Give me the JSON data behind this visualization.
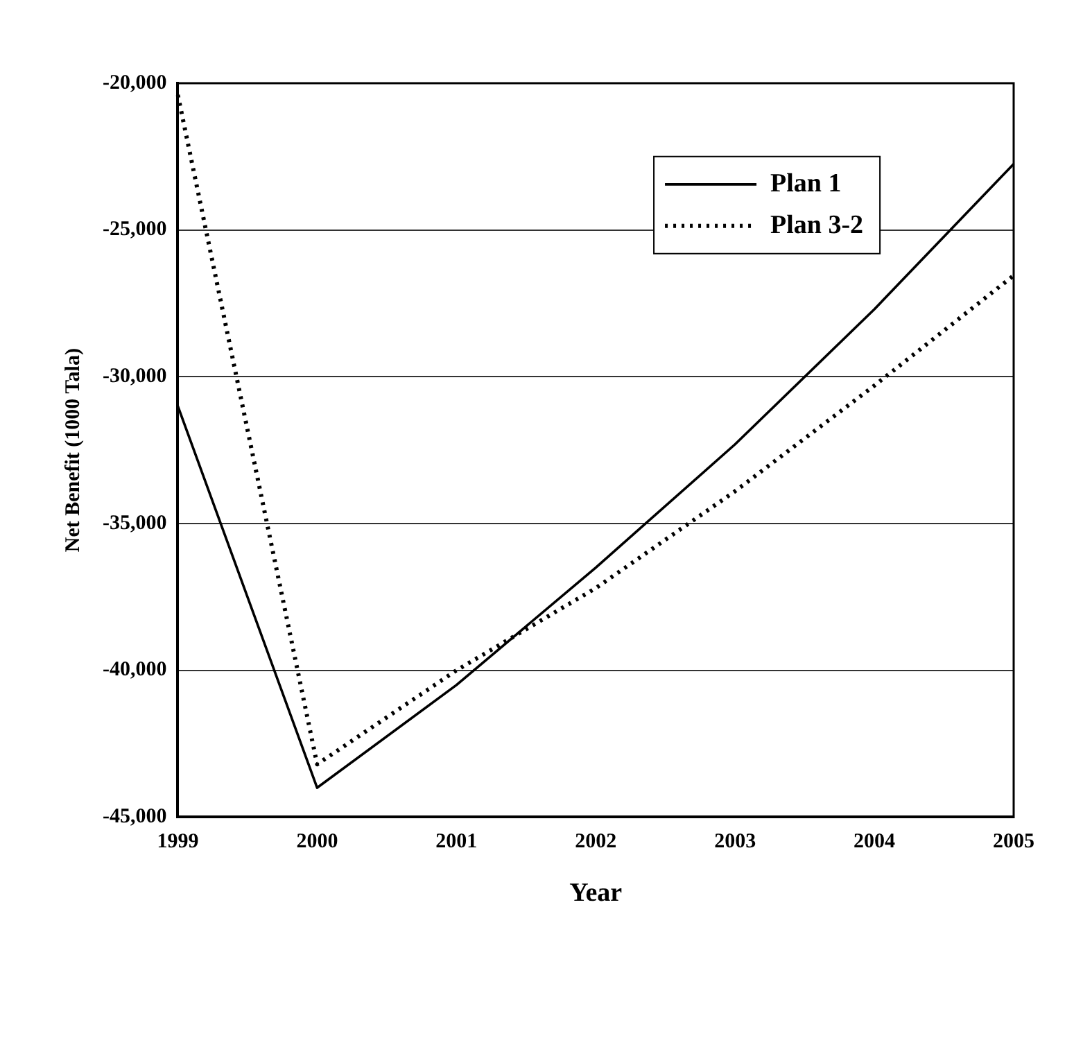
{
  "chart_data": {
    "type": "line",
    "xlabel": "Year",
    "ylabel": "Net Benefit (1000 Tala)",
    "categories": [
      "1999",
      "2000",
      "2001",
      "2002",
      "2003",
      "2004",
      "2005"
    ],
    "series": [
      {
        "name": "Plan 1",
        "color": "#000000",
        "line_style": "solid",
        "values": [
          -31000,
          -44000,
          -40500,
          -36500,
          -32300,
          -27700,
          -22750
        ]
      },
      {
        "name": "Plan 3-2",
        "color": "#000000",
        "line_style": "dotted",
        "values": [
          -20400,
          -43200,
          -40000,
          -37200,
          -33900,
          -30300,
          -26550
        ]
      }
    ],
    "ylim": [
      -45000,
      -20000
    ],
    "yticks": [
      {
        "value": -45000,
        "label": "-45,000"
      },
      {
        "value": -40000,
        "label": "-40,000"
      },
      {
        "value": -35000,
        "label": "-35,000"
      },
      {
        "value": -30000,
        "label": "-30,000"
      },
      {
        "value": -25000,
        "label": "-25,000"
      },
      {
        "value": -20000,
        "label": "-20,000"
      }
    ],
    "grid": "y",
    "legend": "top right",
    "marker": "none"
  }
}
